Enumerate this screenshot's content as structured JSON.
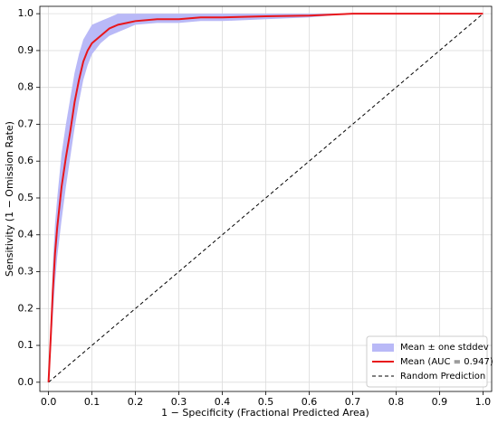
{
  "chart_data": {
    "type": "line",
    "xlabel": "1 − Specificity (Fractional Predicted Area)",
    "ylabel": "Sensitivity (1 − Omission Rate)",
    "x": [
      0,
      0.005,
      0.01,
      0.015,
      0.02,
      0.03,
      0.04,
      0.05,
      0.06,
      0.07,
      0.08,
      0.09,
      0.1,
      0.12,
      0.14,
      0.16,
      0.18,
      0.2,
      0.25,
      0.3,
      0.35,
      0.4,
      0.5,
      0.6,
      0.7,
      0.8,
      0.9,
      1.0
    ],
    "series": [
      {
        "name": "Mean (AUC = 0.947)",
        "color": "#e8161b",
        "values": [
          0,
          0.12,
          0.25,
          0.35,
          0.42,
          0.53,
          0.61,
          0.68,
          0.76,
          0.82,
          0.87,
          0.9,
          0.92,
          0.94,
          0.96,
          0.97,
          0.975,
          0.98,
          0.985,
          0.985,
          0.99,
          0.99,
          0.993,
          0.995,
          1.0,
          1.0,
          1.0,
          1.0
        ]
      }
    ],
    "band": {
      "name": "Mean ± one stddev",
      "color": "#b9b9f7",
      "lower": [
        0,
        0.08,
        0.18,
        0.27,
        0.34,
        0.44,
        0.53,
        0.61,
        0.69,
        0.76,
        0.82,
        0.86,
        0.89,
        0.92,
        0.94,
        0.95,
        0.96,
        0.97,
        0.975,
        0.975,
        0.98,
        0.98,
        0.985,
        0.99,
        1.0,
        1.0,
        1.0,
        1.0
      ],
      "upper": [
        0,
        0.16,
        0.32,
        0.43,
        0.5,
        0.62,
        0.7,
        0.77,
        0.84,
        0.89,
        0.93,
        0.95,
        0.97,
        0.98,
        0.99,
        1.0,
        1.0,
        1.0,
        1.0,
        1.0,
        1.0,
        1.0,
        1.0,
        1.0,
        1.0,
        1.0,
        1.0,
        1.0
      ]
    },
    "reference": {
      "name": "Random Prediction",
      "color": "#000000",
      "x": [
        0,
        1
      ],
      "values": [
        0,
        1
      ]
    },
    "xlim": [
      -0.02,
      1.02
    ],
    "ylim": [
      -0.025,
      1.02
    ],
    "xticks": [
      {
        "value": 0,
        "label": "0.0"
      },
      0.1,
      0.2,
      0.3,
      0.4,
      0.5,
      0.6,
      0.7,
      0.8,
      0.9,
      {
        "value": 1,
        "label": "1.0"
      }
    ],
    "yticks": [
      {
        "value": 0,
        "label": "0.0"
      },
      0.1,
      0.2,
      0.3,
      0.4,
      0.5,
      0.6,
      0.7,
      0.8,
      0.9,
      {
        "value": 1,
        "label": "1.0"
      }
    ],
    "grid": true,
    "legend": "lower right"
  }
}
